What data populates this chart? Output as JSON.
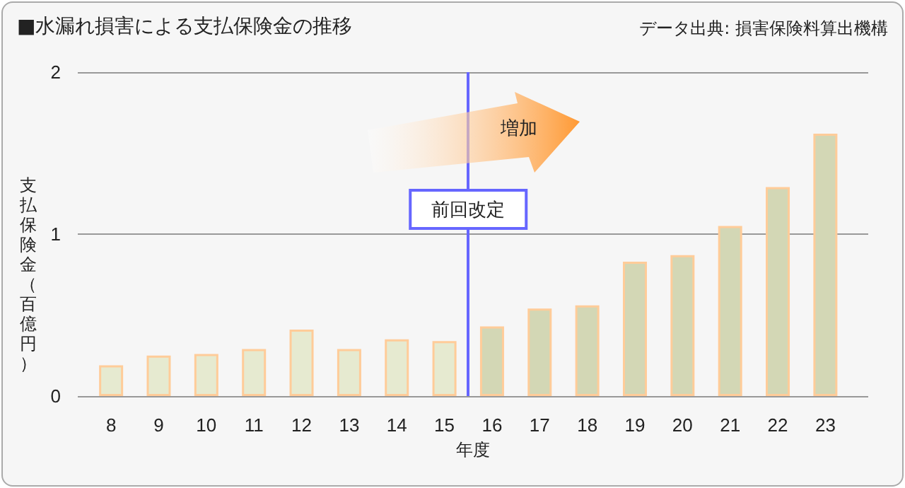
{
  "chart_data": {
    "type": "bar",
    "title": "■水漏れ損害による支払保険金の推移",
    "xlabel": "年度",
    "ylabel": "支払保険金（百億円）",
    "x": [
      8,
      9,
      10,
      11,
      12,
      13,
      14,
      15,
      16,
      17,
      18,
      19,
      20,
      21,
      22,
      23
    ],
    "values": [
      0.19,
      0.25,
      0.26,
      0.29,
      0.41,
      0.29,
      0.35,
      0.34,
      0.43,
      0.54,
      0.56,
      0.83,
      0.87,
      1.05,
      1.29,
      1.62
    ],
    "colors": [
      "#e6ead0",
      "#e6ead0",
      "#e6ead0",
      "#e6ead0",
      "#e6ead0",
      "#e6ead0",
      "#e6ead0",
      "#e6ead0",
      "#d3d7b5",
      "#d3d7b5",
      "#d3d7b5",
      "#d3d7b5",
      "#d3d7b5",
      "#d3d7b5",
      "#d3d7b5",
      "#d3d7b5"
    ],
    "xlim": [
      7.3,
      23.9
    ],
    "xticks": [
      8,
      9,
      10,
      11,
      12,
      13,
      14,
      15,
      16,
      17,
      18,
      19,
      20,
      21,
      22,
      23
    ],
    "ylim": [
      0,
      2
    ],
    "yticks": [
      0,
      1,
      2
    ],
    "grid": "y",
    "ref_lines": [
      {
        "axis": "x",
        "value": 15.5,
        "label": "前回改定",
        "color": "#6666ff"
      }
    ],
    "annotations": [
      "増加",
      "データ出典: 損害保険料算出機構"
    ]
  }
}
